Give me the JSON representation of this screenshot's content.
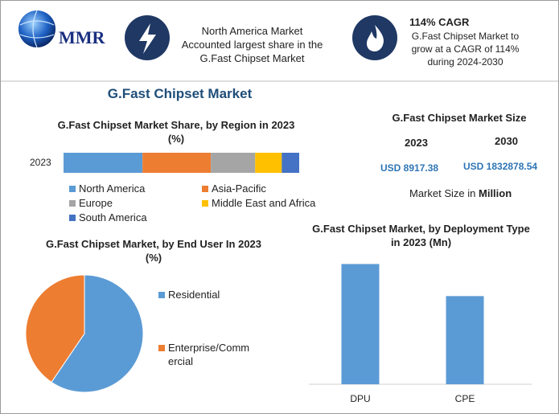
{
  "header": {
    "logo": "MMR",
    "fact1": [
      "North America Market",
      "Accounted largest share in the",
      "G.Fast Chipset Market"
    ],
    "fact2_title": "114% CAGR",
    "fact2": [
      "G.Fast Chipset Market to",
      "grow at a CAGR of 114%",
      "during 2024-2030"
    ]
  },
  "title": "G.Fast Chipset Market",
  "market_size": {
    "title": "G.Fast Chipset Market Size",
    "years": [
      "2023",
      "2030"
    ],
    "values": [
      "USD 8917.38",
      "USD 1832878.54"
    ],
    "note": "Market Size in",
    "unit": "Million"
  },
  "chart_data": [
    {
      "type": "stacked_bar",
      "title": "G.Fast Chipset Market Share, by Region in 2023 (%)",
      "categories": [
        "2023"
      ],
      "xlim": [
        0,
        100
      ],
      "legend": "bottom",
      "series": [
        {
          "name": "North America",
          "color": "#5b9bd5",
          "values": [
            33.5
          ]
        },
        {
          "name": "Asia-Pacific",
          "color": "#ed7d31",
          "values": [
            29
          ]
        },
        {
          "name": "Europe",
          "color": "#a5a5a5",
          "values": [
            18.8
          ]
        },
        {
          "name": "Middle East and Africa",
          "color": "#ffc000",
          "values": [
            11.3
          ]
        },
        {
          "name": "South America",
          "color": "#4472c4",
          "values": [
            7.4
          ]
        }
      ]
    },
    {
      "type": "pie",
      "title": "G.Fast Chipset Market, by End User In 2023 (%)",
      "categories": [
        "Residential",
        "Enterprise/Commercial"
      ],
      "values": [
        59.5,
        40.5
      ],
      "colors": [
        "#5b9bd5",
        "#ed7d31"
      ],
      "legend": "right"
    },
    {
      "type": "bar",
      "title": "G.Fast Chipset Market, by Deployment Type in 2023 (Mn)",
      "categories": [
        "DPU",
        "CPE"
      ],
      "values": [
        5145,
        3772
      ],
      "color": "#5b9bd5",
      "ylim": [
        0,
        5400
      ]
    }
  ]
}
